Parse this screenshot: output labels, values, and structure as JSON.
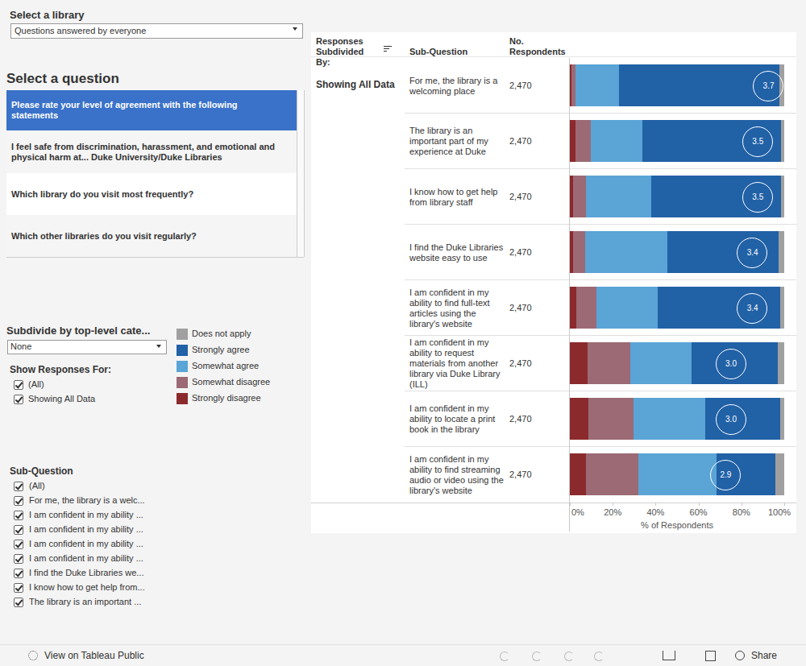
{
  "chart_data": {
    "type": "bar",
    "orientation": "horizontal",
    "stacked": true,
    "legend": "left",
    "column_headers": [
      "Responses Subdivided By:",
      "Sub-Question",
      "No. Respondents"
    ],
    "row_group": "Showing All Data",
    "categories": [
      "For me, the library is a welcoming place",
      "The library is an important part of my experience at Duke",
      "I know how to get help from library staff",
      "I find the Duke Libraries website easy to use",
      "I am confident in my ability to find full-text articles using the library's website",
      "I am confident in my ability to request materials from another library via Duke Library (ILL)",
      "I am confident in my ability to locate a print book in the library",
      "I am confident in my ability to find streaming audio or video using the library's website"
    ],
    "respondents": [
      2470,
      2470,
      2470,
      2470,
      2470,
      2470,
      2470,
      2470
    ],
    "respondents_labels": [
      "2,470",
      "2,470",
      "2,470",
      "2,470",
      "2,470",
      "2,470",
      "2,470",
      "2,470"
    ],
    "average": [
      3.7,
      3.5,
      3.5,
      3.4,
      3.4,
      3.0,
      3.0,
      2.9
    ],
    "average_labels": [
      "3.7",
      "3.5",
      "3.5",
      "3.4",
      "3.4",
      "3.0",
      "3.0",
      "2.9"
    ],
    "average_lim": [
      0,
      4
    ],
    "series": [
      {
        "name": "Strongly disagree",
        "color": "#8b2a2d",
        "values": [
          0.8,
          2.6,
          1.5,
          1.5,
          3.0,
          8.3,
          8.7,
          7.5
        ]
      },
      {
        "name": "Somewhat disagree",
        "color": "#9b6a74",
        "values": [
          2.0,
          7.2,
          6.0,
          5.5,
          9.4,
          20.0,
          21.1,
          24.5
        ]
      },
      {
        "name": "Somewhat agree",
        "color": "#5aa4d6",
        "values": [
          20.0,
          24.2,
          30.5,
          38.5,
          28.6,
          28.3,
          33.2,
          36.6
        ]
      },
      {
        "name": "Strongly agree",
        "color": "#2161a6",
        "values": [
          75.0,
          64.5,
          60.5,
          52.0,
          57.0,
          40.4,
          35.1,
          27.2
        ]
      },
      {
        "name": "Does not apply",
        "color": "#a0a0a0",
        "values": [
          2.2,
          1.5,
          1.5,
          2.5,
          2.0,
          3.0,
          1.9,
          4.2
        ]
      }
    ],
    "xlim": [
      0,
      100
    ],
    "xticks": [
      {
        "value": 0,
        "label": "0%"
      },
      {
        "value": 20,
        "label": "20%"
      },
      {
        "value": 40,
        "label": "40%"
      },
      {
        "value": 60,
        "label": "60%"
      },
      {
        "value": 80,
        "label": "80%"
      },
      {
        "value": 100,
        "label": "100%"
      }
    ],
    "xlabel": "% of Respondents"
  },
  "ui": {
    "select_library_label": "Select a library",
    "library_dropdown": "Questions answered by everyone",
    "select_question_label": "Select a question",
    "questions": [
      "Please rate your level of agreement with the following statements",
      "I feel safe from discrimination, harassment, and emotional and physical harm at... Duke University/Duke Libraries",
      "Which library do you visit most frequently?",
      "Which other libraries do you visit regularly?"
    ],
    "subdivide_label": "Subdivide by top-level cate...",
    "subdivide_dropdown": "None",
    "show_responses_label": "Show Responses For:",
    "show_responses_items": [
      "(All)",
      "Showing All Data"
    ],
    "subquestion_filter_label": "Sub-Question",
    "subquestion_filter_items": [
      "(All)",
      "For me, the library is a welc...",
      "I am confident in my ability ...",
      "I am confident in my ability ...",
      "I am confident in my ability ...",
      "I am confident in my ability ...",
      "I find the Duke Libraries we...",
      "I know how to get help from...",
      "The library is an important ..."
    ],
    "footer_link": "View on Tableau Public",
    "footer_share": "Share"
  }
}
